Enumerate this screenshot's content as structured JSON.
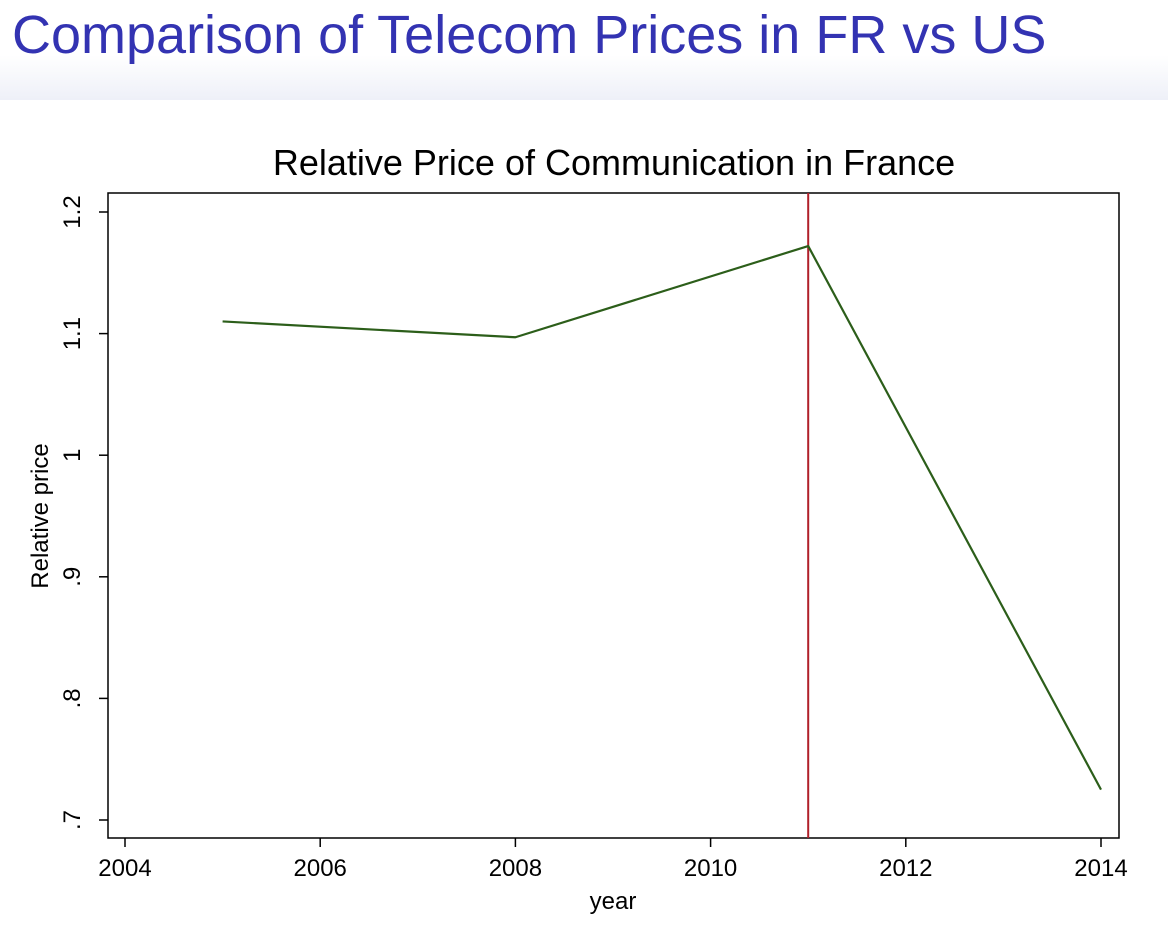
{
  "slide": {
    "title": "Comparison of Telecom Prices in FR vs US"
  },
  "colors": {
    "title": "#3333b2",
    "series_line": "#2c5e1a",
    "reference_line": "#b0202a",
    "axis": "#000000"
  },
  "chart_data": {
    "type": "line",
    "title": "Relative Price of Communication in France",
    "xlabel": "year",
    "ylabel": "Relative price",
    "xlim": [
      2004,
      2014
    ],
    "ylim": [
      0.7,
      1.2
    ],
    "x_ticks": [
      2004,
      2006,
      2008,
      2010,
      2012,
      2014
    ],
    "x_tick_labels": [
      "2004",
      "2006",
      "2008",
      "2010",
      "2012",
      "2014"
    ],
    "y_ticks": [
      0.7,
      0.8,
      0.9,
      1.0,
      1.1,
      1.2
    ],
    "y_tick_labels": [
      ".7",
      ".8",
      ".9",
      "1",
      "1.1",
      "1.2"
    ],
    "grid": false,
    "series": [
      {
        "name": "Relative price",
        "x": [
          2005,
          2008,
          2011,
          2014
        ],
        "values": [
          1.11,
          1.097,
          1.172,
          0.725
        ]
      }
    ],
    "reference_lines": [
      {
        "axis": "x",
        "value": 2011
      }
    ]
  }
}
